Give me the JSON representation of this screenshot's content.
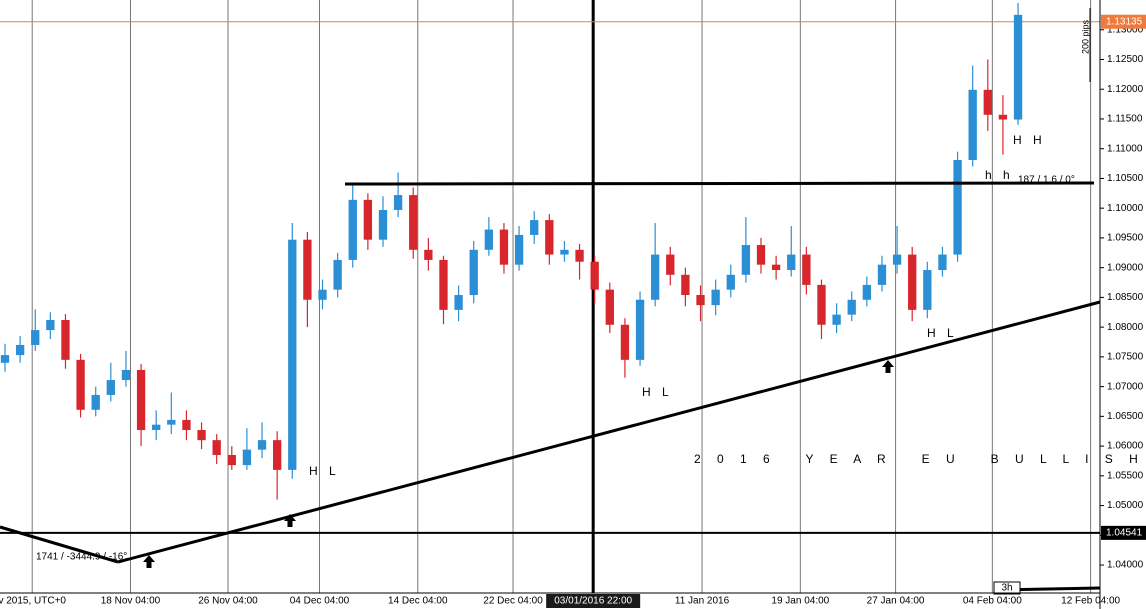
{
  "chart_data": {
    "type": "candlestick",
    "x": [
      0,
      1,
      2,
      3,
      4,
      5,
      6,
      7,
      8,
      9,
      10,
      11,
      12,
      13,
      14,
      15,
      16,
      17,
      18,
      19,
      20,
      21,
      22,
      23,
      24,
      25,
      26,
      27,
      28,
      29,
      30,
      31,
      32,
      33,
      34,
      35,
      36,
      37,
      38,
      39,
      40,
      41,
      42,
      43,
      44,
      45,
      46,
      47,
      48,
      49,
      50,
      51,
      52,
      53,
      54,
      55,
      56,
      57,
      58,
      59,
      60,
      61,
      62,
      63,
      64,
      65,
      66,
      67
    ],
    "open": [
      1.074,
      1.0753,
      1.077,
      1.0795,
      1.0812,
      1.0745,
      1.0661,
      1.0686,
      1.0711,
      1.0728,
      1.0627,
      1.0636,
      1.0644,
      1.0627,
      1.061,
      1.0585,
      1.0568,
      1.0594,
      1.061,
      1.056,
      1.0947,
      1.0846,
      1.0863,
      1.0913,
      1.1014,
      1.0947,
      1.0997,
      1.1022,
      1.093,
      1.0913,
      1.0829,
      1.0854,
      1.093,
      1.0964,
      1.0905,
      1.0955,
      1.098,
      1.0922,
      1.093,
      1.091,
      1.0863,
      1.0804,
      1.0745,
      1.0846,
      1.0922,
      1.0888,
      1.0854,
      1.0837,
      1.0863,
      1.0888,
      1.0938,
      1.0905,
      1.0896,
      1.0922,
      1.0871,
      1.0804,
      1.0821,
      1.0846,
      1.0871,
      1.0905,
      1.0922,
      1.0829,
      1.0896,
      1.0922,
      1.1081,
      1.1199,
      1.1157,
      1.1149
    ],
    "high": [
      1.0772,
      1.0785,
      1.083,
      1.0825,
      1.0822,
      1.0755,
      1.07,
      1.074,
      1.076,
      1.0738,
      1.066,
      1.069,
      1.066,
      1.064,
      1.062,
      1.06,
      1.063,
      1.064,
      1.0625,
      1.0975,
      1.096,
      1.088,
      1.0925,
      1.104,
      1.1025,
      1.102,
      1.106,
      1.1035,
      1.095,
      1.092,
      1.087,
      1.0945,
      1.0985,
      1.0975,
      1.097,
      1.0995,
      1.099,
      1.0945,
      1.094,
      1.092,
      1.0875,
      1.0815,
      1.086,
      1.0975,
      1.0935,
      1.09,
      1.087,
      1.088,
      1.0905,
      1.0985,
      1.095,
      1.092,
      1.097,
      1.0935,
      1.088,
      1.084,
      1.086,
      1.0885,
      1.092,
      1.097,
      1.0935,
      1.091,
      1.0935,
      1.1095,
      1.124,
      1.125,
      1.119,
      1.1345
    ],
    "low": [
      1.0725,
      1.074,
      1.076,
      1.078,
      1.073,
      1.0648,
      1.065,
      1.0675,
      1.07,
      1.06,
      1.061,
      1.062,
      1.061,
      1.0595,
      1.057,
      1.056,
      1.056,
      1.058,
      1.051,
      1.0545,
      1.08,
      1.083,
      1.085,
      1.09,
      1.093,
      1.0935,
      1.0985,
      1.0915,
      1.0895,
      1.0805,
      1.081,
      1.084,
      1.092,
      1.089,
      1.0895,
      1.094,
      1.0905,
      1.091,
      1.088,
      1.084,
      1.079,
      1.0715,
      1.0735,
      1.0835,
      1.087,
      1.0835,
      1.081,
      1.082,
      1.085,
      1.0875,
      1.089,
      1.088,
      1.0885,
      1.0855,
      1.078,
      1.079,
      1.081,
      1.0835,
      1.086,
      1.089,
      1.081,
      1.0815,
      1.0885,
      1.091,
      1.107,
      1.113,
      1.109,
      1.114
    ],
    "close": [
      1.0753,
      1.077,
      1.0795,
      1.0812,
      1.0745,
      1.0661,
      1.0686,
      1.0711,
      1.0728,
      1.0627,
      1.0636,
      1.0644,
      1.0627,
      1.061,
      1.0585,
      1.0568,
      1.0594,
      1.061,
      1.056,
      1.0947,
      1.0846,
      1.0863,
      1.0913,
      1.1014,
      1.0947,
      1.0997,
      1.1022,
      1.093,
      1.0913,
      1.0829,
      1.0854,
      1.093,
      1.0964,
      1.0905,
      1.0955,
      1.098,
      1.0922,
      1.093,
      1.091,
      1.0863,
      1.0804,
      1.0745,
      1.0846,
      1.0922,
      1.0888,
      1.0854,
      1.0837,
      1.0863,
      1.0888,
      1.0938,
      1.0905,
      1.0896,
      1.0922,
      1.0871,
      1.0804,
      1.0821,
      1.0846,
      1.0871,
      1.0905,
      1.0922,
      1.0829,
      1.0896,
      1.0922,
      1.1081,
      1.1199,
      1.1157,
      1.1149,
      1.1325
    ],
    "up_color": "#2b8fd6",
    "down_color": "#d8262d",
    "xlim": [
      -0.33,
      72.42
    ],
    "xticks": [
      {
        "value": 1.8,
        "label": "v 2015, UTC+0"
      },
      {
        "value": 8.3,
        "label": "18 Nov 04:00"
      },
      {
        "value": 14.75,
        "label": "26 Nov 04:00"
      },
      {
        "value": 20.8,
        "label": "04 Dec 04:00"
      },
      {
        "value": 27.3,
        "label": "14 Dec 04:00"
      },
      {
        "value": 33.6,
        "label": "22 Dec 04:00"
      },
      {
        "value": 46.1,
        "label": "11 Jan 2016"
      },
      {
        "value": 52.6,
        "label": "19 Jan 04:00"
      },
      {
        "value": 58.9,
        "label": "27 Jan 04:00"
      },
      {
        "value": 65.3,
        "label": "04 Feb 04:00"
      },
      {
        "value": 71.8,
        "label": "12 Feb 04:00"
      }
    ],
    "crosshair": {
      "value": 38.9,
      "label": "03/01/2016 22:00"
    },
    "ylim": [
      1.0353,
      1.135
    ],
    "yticks": [
      {
        "value": 1.04,
        "label": "1.04000"
      },
      {
        "value": 1.045,
        "label": "1.04500"
      },
      {
        "value": 1.05,
        "label": "1.05000"
      },
      {
        "value": 1.055,
        "label": "1.05500"
      },
      {
        "value": 1.06,
        "label": "1.06000"
      },
      {
        "value": 1.065,
        "label": "1.06500"
      },
      {
        "value": 1.07,
        "label": "1.07000"
      },
      {
        "value": 1.075,
        "label": "1.07500"
      },
      {
        "value": 1.08,
        "label": "1.08000"
      },
      {
        "value": 1.085,
        "label": "1.08500"
      },
      {
        "value": 1.09,
        "label": "1.09000"
      },
      {
        "value": 1.095,
        "label": "1.09500"
      },
      {
        "value": 1.1,
        "label": "1.10000"
      },
      {
        "value": 1.105,
        "label": "1.10500"
      },
      {
        "value": 1.11,
        "label": "1.11000"
      },
      {
        "value": 1.115,
        "label": "1.11500"
      },
      {
        "value": 1.12,
        "label": "1.12000"
      },
      {
        "value": 1.125,
        "label": "1.12500"
      },
      {
        "value": 1.13,
        "label": "1.13000"
      }
    ],
    "price_lines": [
      {
        "value": 1.13135,
        "color": "#f07a3c"
      },
      {
        "value": 1.04541,
        "color": "#000000"
      }
    ],
    "grid": true,
    "annotations": [
      "187 / 1.6 / 0°",
      "1741 / -3444.9 / -16°",
      "H L",
      "H L",
      "H L",
      "H H",
      "h h",
      "2 0 1 6   Y E A R   E U   B U L L I S H",
      "200 pips",
      "3h"
    ]
  }
}
